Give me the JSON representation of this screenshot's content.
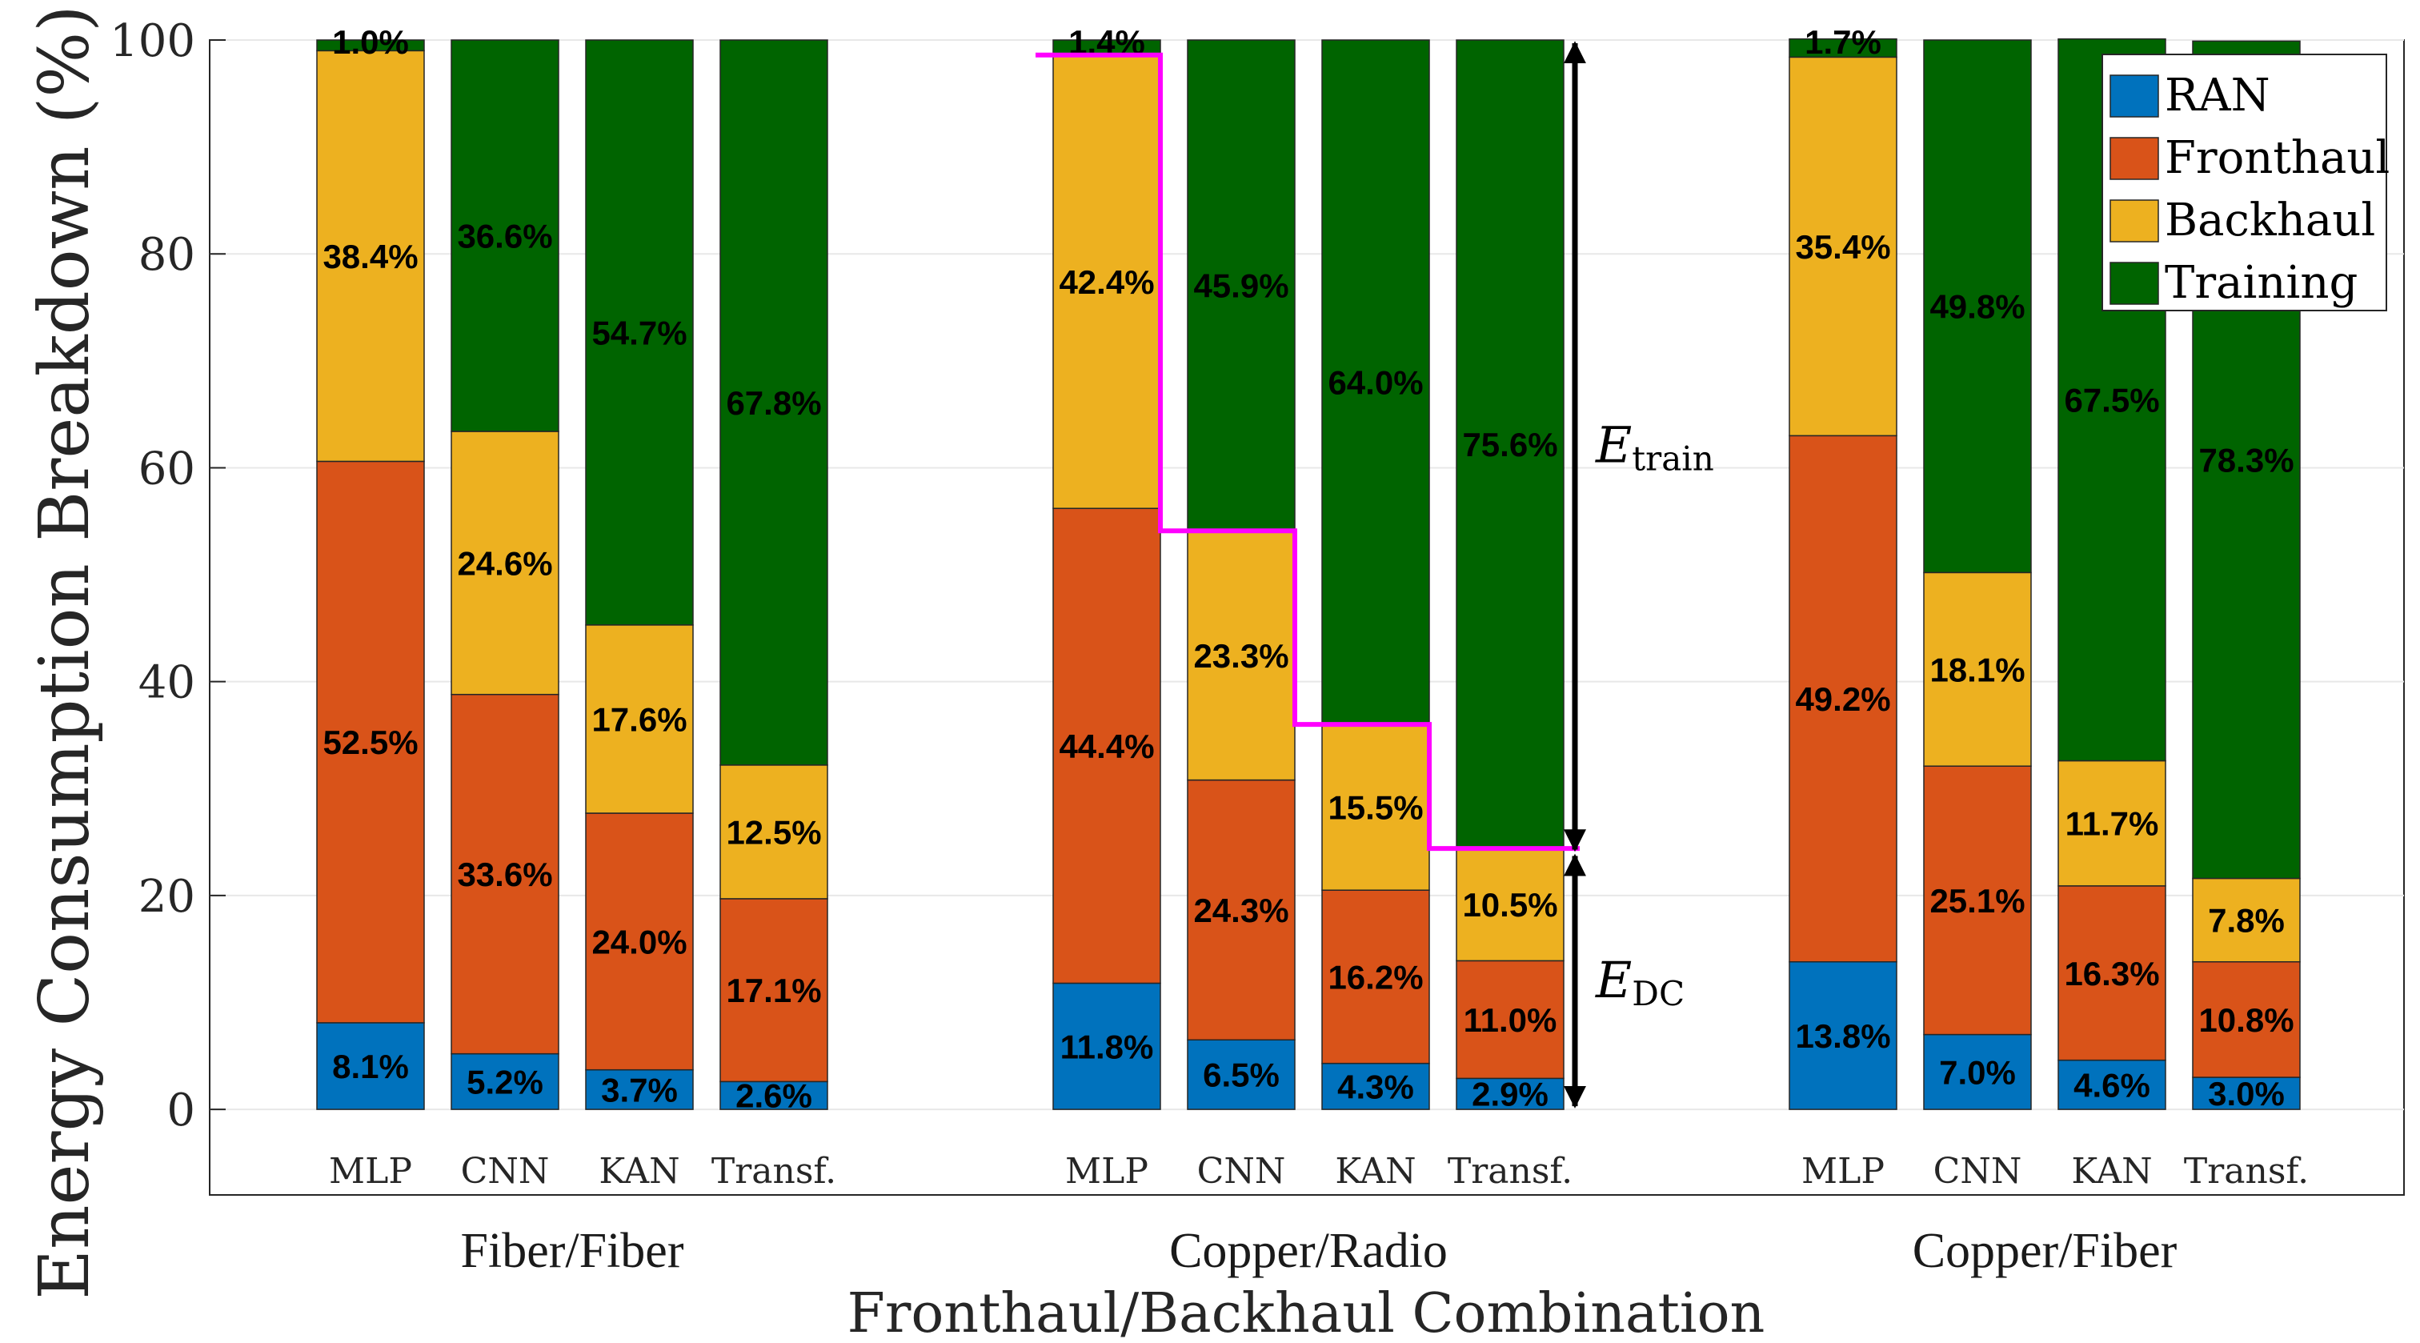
{
  "chart_data": {
    "type": "bar",
    "stacked": true,
    "title": "",
    "xlabel": "Fronthaul/Backhaul Combination",
    "ylabel": "Energy Consumption Breakdown (%)",
    "ylim": [
      -8,
      100
    ],
    "yticks": [
      0,
      20,
      40,
      60,
      80,
      100
    ],
    "grid": true,
    "legend_position": "top-right",
    "series": [
      {
        "name": "RAN",
        "color": "#0072BD"
      },
      {
        "name": "Fronthaul",
        "color": "#D95319"
      },
      {
        "name": "Backhaul",
        "color": "#EDB120"
      },
      {
        "name": "Training",
        "color": "#006400"
      }
    ],
    "groups": [
      {
        "name": "Fiber/Fiber",
        "bars": [
          {
            "model": "MLP",
            "values": [
              8.1,
              52.5,
              38.4,
              1.0
            ],
            "labels": [
              "8.1%",
              "52.5%",
              "38.4%",
              "1.0%"
            ]
          },
          {
            "model": "CNN",
            "values": [
              5.2,
              33.6,
              24.6,
              36.6
            ],
            "labels": [
              "5.2%",
              "33.6%",
              "24.6%",
              "36.6%"
            ]
          },
          {
            "model": "KAN",
            "values": [
              3.7,
              24.0,
              17.6,
              54.7
            ],
            "labels": [
              "3.7%",
              "24.0%",
              "17.6%",
              "54.7%"
            ]
          },
          {
            "model": "Transf.",
            "values": [
              2.6,
              17.1,
              12.5,
              67.8
            ],
            "labels": [
              "2.6%",
              "17.1%",
              "12.5%",
              "67.8%"
            ]
          }
        ]
      },
      {
        "name": "Copper/Radio",
        "bars": [
          {
            "model": "MLP",
            "values": [
              11.8,
              44.4,
              42.4,
              1.4
            ],
            "labels": [
              "11.8%",
              "44.4%",
              "42.4%",
              "1.4%"
            ]
          },
          {
            "model": "CNN",
            "values": [
              6.5,
              24.3,
              23.3,
              45.9
            ],
            "labels": [
              "6.5%",
              "24.3%",
              "23.3%",
              "45.9%"
            ]
          },
          {
            "model": "KAN",
            "values": [
              4.3,
              16.2,
              15.5,
              64.0
            ],
            "labels": [
              "4.3%",
              "16.2%",
              "15.5%",
              "64.0%"
            ]
          },
          {
            "model": "Transf.",
            "values": [
              2.9,
              11.0,
              10.5,
              75.6
            ],
            "labels": [
              "2.9%",
              "11.0%",
              "10.5%",
              "75.6%"
            ]
          }
        ]
      },
      {
        "name": "Copper/Fiber",
        "bars": [
          {
            "model": "MLP",
            "values": [
              13.8,
              49.2,
              35.4,
              1.7
            ],
            "labels": [
              "13.8%",
              "49.2%",
              "35.4%",
              "1.7%"
            ]
          },
          {
            "model": "CNN",
            "values": [
              7.0,
              25.1,
              18.1,
              49.8
            ],
            "labels": [
              "7.0%",
              "25.1%",
              "18.1%",
              "49.8%"
            ]
          },
          {
            "model": "KAN",
            "values": [
              4.6,
              16.3,
              11.7,
              67.5
            ],
            "labels": [
              "4.6%",
              "16.3%",
              "11.7%",
              "67.5%"
            ]
          },
          {
            "model": "Transf.",
            "values": [
              3.0,
              10.8,
              7.8,
              78.3
            ],
            "labels": [
              "3.0%",
              "10.8%",
              "7.8%",
              "78.3%"
            ]
          }
        ]
      }
    ],
    "annotations": [
      {
        "text": "E",
        "subscript": "train",
        "range": [
          24.0,
          100
        ]
      },
      {
        "text": "E",
        "subscript": "DC",
        "range": [
          0,
          24.0
        ]
      }
    ],
    "step_line": {
      "group": "Copper/Radio",
      "color": "#FF00FF"
    }
  }
}
